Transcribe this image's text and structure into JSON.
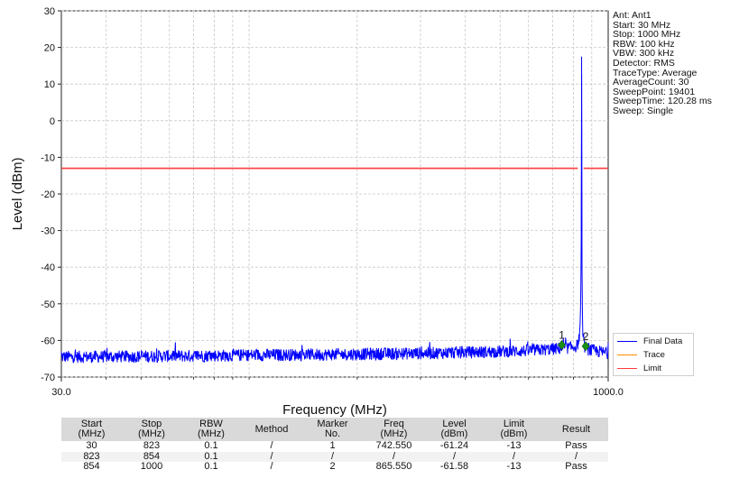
{
  "chart_data": {
    "type": "line",
    "title": "",
    "xlabel": "Frequency (MHz)",
    "ylabel": "Level (dBm)",
    "x_scale": "log",
    "xlim": [
      30,
      1000
    ],
    "ylim": [
      -70,
      30
    ],
    "x_tick_labels": [
      "30.0",
      "1000.0"
    ],
    "y_ticks": [
      30,
      20,
      10,
      0,
      -10,
      -20,
      -30,
      -40,
      -50,
      -60,
      -70
    ],
    "grid": true,
    "legend_position": "bottom-right-outside",
    "series": [
      {
        "name": "Final Data",
        "color": "#0000ff",
        "noise_floor_dbm": -64.0,
        "points": [
          [
            30,
            -64.5
          ],
          [
            100,
            -64.0
          ],
          [
            300,
            -63.5
          ],
          [
            600,
            -62.8
          ],
          [
            780,
            -62.0
          ],
          [
            820,
            -61.5
          ],
          [
            835,
            -58.0
          ],
          [
            839,
            -47.0
          ],
          [
            841,
            -33.5
          ],
          [
            842.5,
            -24.0
          ],
          [
            843.3,
            17.5
          ],
          [
            844.2,
            -28.0
          ],
          [
            846,
            -45.0
          ],
          [
            849,
            -58.0
          ],
          [
            855,
            -61.5
          ],
          [
            880,
            -62.5
          ],
          [
            1000,
            -63.5
          ]
        ]
      },
      {
        "name": "Trace",
        "color": "#ff8c00",
        "points": []
      },
      {
        "name": "Limit",
        "color": "#ff3b3b",
        "segments": [
          [
            [
              30,
              -13
            ],
            [
              823,
              -13
            ]
          ],
          [
            [
              854,
              -13
            ],
            [
              1000,
              -13
            ]
          ]
        ]
      }
    ],
    "markers": [
      {
        "label": "1",
        "freq": 742.55,
        "level": -61.24,
        "color": "#1a8f1a"
      },
      {
        "label": "2",
        "freq": 865.55,
        "level": -61.58,
        "color": "#1a8f1a"
      }
    ]
  },
  "info_panel": [
    "Ant: Ant1",
    "Start: 30 MHz",
    "Stop: 1000 MHz",
    "RBW: 100 kHz",
    "VBW: 300 kHz",
    "Detector: RMS",
    "TraceType: Average",
    "AverageCount: 30",
    "SweepPoint: 19401",
    "SweepTime: 120.28 ms",
    "Sweep: Single"
  ],
  "legend": [
    {
      "label": "Final Data",
      "color": "#0000ff"
    },
    {
      "label": "Trace",
      "color": "#ff8c00"
    },
    {
      "label": "Limit",
      "color": "#ff3b3b"
    }
  ],
  "results_table": {
    "headers": [
      [
        "Start",
        "(MHz)"
      ],
      [
        "Stop",
        "(MHz)"
      ],
      [
        "RBW",
        "(MHz)"
      ],
      [
        "Method",
        ""
      ],
      [
        "Marker",
        "No."
      ],
      [
        "Freq",
        "(MHz)"
      ],
      [
        "Level",
        "(dBm)"
      ],
      [
        "Limit",
        "(dBm)"
      ],
      [
        "Result",
        ""
      ]
    ],
    "rows": [
      [
        "30",
        "823",
        "0.1",
        "/",
        "1",
        "742.550",
        "-61.24",
        "-13",
        "Pass"
      ],
      [
        "823",
        "854",
        "0.1",
        "/",
        "/",
        "/",
        "/",
        "/",
        "/"
      ],
      [
        "854",
        "1000",
        "0.1",
        "/",
        "2",
        "865.550",
        "-61.58",
        "-13",
        "Pass"
      ]
    ]
  }
}
